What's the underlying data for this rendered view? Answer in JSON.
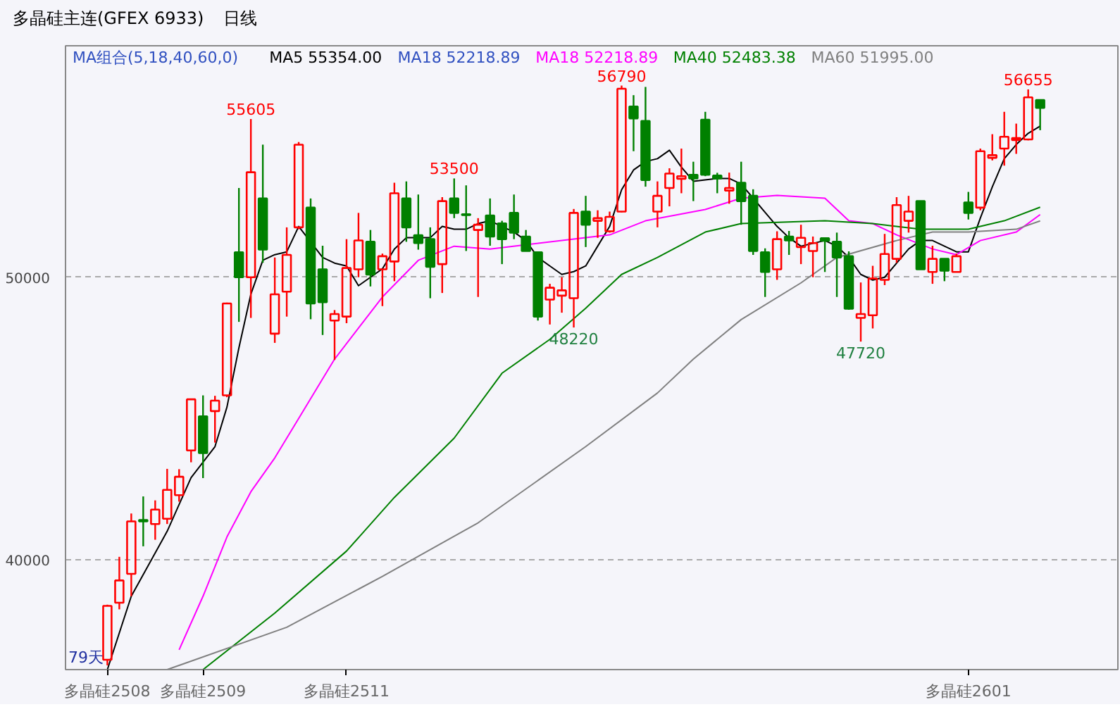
{
  "chart_data": {
    "type": "candlestick",
    "title": "多晶硅主连(GFEX 6933)",
    "subtitle": "日线",
    "legend_title": "MA组合(5,18,40,60,0)",
    "legend": "top left",
    "grid": "y",
    "categories": [
      "多晶硅2508",
      null,
      null,
      null,
      null,
      null,
      null,
      null,
      "多晶硅2509",
      null,
      null,
      null,
      null,
      null,
      null,
      null,
      null,
      null,
      null,
      null,
      "多晶硅2511",
      null,
      null,
      null,
      null,
      null,
      null,
      null,
      null,
      null,
      null,
      null,
      null,
      null,
      null,
      null,
      null,
      null,
      null,
      null,
      null,
      null,
      null,
      null,
      null,
      null,
      null,
      null,
      null,
      null,
      null,
      null,
      null,
      null,
      null,
      null,
      null,
      null,
      null,
      null,
      null,
      null,
      null,
      null,
      null,
      null,
      null,
      null,
      null,
      null,
      null,
      null,
      "多晶硅2601",
      null,
      null,
      null,
      null,
      null,
      null
    ],
    "ylim": [
      36100,
      58200
    ],
    "yticks": [
      40000,
      50000
    ],
    "ohlc": [
      [
        36451,
        38400,
        36250,
        38358
      ],
      [
        38468,
        40095,
        38235,
        39258
      ],
      [
        39491,
        41630,
        38700,
        41351
      ],
      [
        41400,
        42235,
        40468,
        41350
      ],
      [
        41258,
        42095,
        40700,
        41770
      ],
      [
        41444,
        43211,
        41258,
        42467
      ],
      [
        42281,
        43200,
        42050,
        42932
      ],
      [
        43862,
        45700,
        43444,
        45675
      ],
      [
        45071,
        45815,
        42885,
        43769
      ],
      [
        45257,
        45800,
        44141,
        45629
      ],
      [
        45815,
        49100,
        45750,
        49070
      ],
      [
        50884,
        53162,
        48419,
        50000
      ],
      [
        50000,
        55605,
        48558,
        53720
      ],
      [
        52790,
        54697,
        50512,
        50977
      ],
      [
        48000,
        50700,
        47675,
        49396
      ],
      [
        49488,
        51767,
        48605,
        50791
      ],
      [
        51767,
        54790,
        51700,
        54697
      ],
      [
        52465,
        52790,
        48512,
        49070
      ],
      [
        50279,
        51116,
        47954,
        49116
      ],
      [
        48465,
        48837,
        47070,
        48698
      ],
      [
        48605,
        51349,
        48372,
        50326
      ],
      [
        50279,
        52279,
        50000,
        51302
      ],
      [
        51256,
        51674,
        49674,
        50093
      ],
      [
        50279,
        50837,
        48977,
        50744
      ],
      [
        50558,
        53348,
        49860,
        52976
      ],
      [
        52790,
        53395,
        51256,
        51767
      ],
      [
        51488,
        52930,
        50977,
        51209
      ],
      [
        51349,
        51767,
        49256,
        50372
      ],
      [
        50465,
        52837,
        49442,
        52697
      ],
      [
        52790,
        53500,
        52093,
        52279
      ],
      [
        52230,
        53255,
        50930,
        52200
      ],
      [
        51674,
        52093,
        49302,
        51860
      ],
      [
        52186,
        52790,
        51116,
        51442
      ],
      [
        51907,
        52000,
        50465,
        51349
      ],
      [
        52279,
        52930,
        51349,
        51581
      ],
      [
        51442,
        51674,
        50930,
        50930
      ],
      [
        50884,
        50884,
        48465,
        48605
      ],
      [
        49209,
        49767,
        48326,
        49628
      ],
      [
        49349,
        50000,
        48744,
        49535
      ],
      [
        49256,
        52418,
        48220,
        52279
      ],
      [
        52325,
        52883,
        51070,
        51860
      ],
      [
        51999,
        52372,
        51395,
        52093
      ],
      [
        51628,
        52325,
        51581,
        52139
      ],
      [
        52325,
        56790,
        52300,
        56680
      ],
      [
        56046,
        56450,
        54465,
        55628
      ],
      [
        55535,
        56742,
        53209,
        53441
      ],
      [
        52325,
        53395,
        51767,
        52883
      ],
      [
        53162,
        53860,
        52511,
        53674
      ],
      [
        53488,
        54557,
        52976,
        53581
      ],
      [
        53628,
        54092,
        52697,
        53500
      ],
      [
        55581,
        55860,
        53581,
        53628
      ],
      [
        53600,
        53700,
        52976,
        53500
      ],
      [
        53070,
        53706,
        52604,
        53160
      ],
      [
        53348,
        54092,
        51860,
        52697
      ],
      [
        52883,
        53116,
        50791,
        50930
      ],
      [
        50884,
        51023,
        49302,
        50186
      ],
      [
        50279,
        51628,
        49907,
        51349
      ],
      [
        51442,
        51640,
        50791,
        51302
      ],
      [
        51070,
        51860,
        50465,
        51395
      ],
      [
        50930,
        51442,
        50000,
        51209
      ],
      [
        51380,
        51400,
        50186,
        51290
      ],
      [
        51256,
        51581,
        49302,
        50698
      ],
      [
        50744,
        50916,
        48850,
        48884
      ],
      [
        48558,
        49814,
        47720,
        48698
      ],
      [
        48651,
        50405,
        48186,
        49953
      ],
      [
        49907,
        51535,
        49721,
        50823
      ],
      [
        50651,
        52837,
        50512,
        52558
      ],
      [
        51999,
        52883,
        51581,
        52325
      ],
      [
        52697,
        52700,
        50279,
        50279
      ],
      [
        50186,
        51116,
        49767,
        50651
      ],
      [
        50651,
        50651,
        49860,
        50233
      ],
      [
        50186,
        50837,
        50186,
        50744
      ],
      [
        52651,
        53023,
        52046,
        52279
      ],
      [
        52465,
        54557,
        52372,
        54465
      ],
      [
        54232,
        55068,
        54139,
        54325
      ],
      [
        54557,
        55860,
        53953,
        54976
      ],
      [
        54860,
        55442,
        54371,
        54930
      ],
      [
        54883,
        56655,
        54850,
        56372
      ],
      [
        56279,
        56300,
        55209,
        56000
      ]
    ],
    "colors": [
      "#ff0000",
      "#ff0000",
      "#ff0000",
      "#008000",
      "#ff0000",
      "#ff0000",
      "#ff0000",
      "#ff0000",
      "#008000",
      "#ff0000",
      "#ff0000",
      "#008000",
      "#ff0000",
      "#008000",
      "#ff0000",
      "#ff0000",
      "#ff0000",
      "#008000",
      "#008000",
      "#ff0000",
      "#ff0000",
      "#ff0000",
      "#008000",
      "#ff0000",
      "#ff0000",
      "#008000",
      "#008000",
      "#008000",
      "#ff0000",
      "#008000",
      "#008000",
      "#ff0000",
      "#008000",
      "#008000",
      "#008000",
      "#008000",
      "#008000",
      "#ff0000",
      "#ff0000",
      "#ff0000",
      "#008000",
      "#ff0000",
      "#ff0000",
      "#ff0000",
      "#008000",
      "#008000",
      "#ff0000",
      "#ff0000",
      "#ff0000",
      "#008000",
      "#008000",
      "#008000",
      "#ff0000",
      "#008000",
      "#008000",
      "#008000",
      "#ff0000",
      "#008000",
      "#ff0000",
      "#ff0000",
      "#008000",
      "#008000",
      "#008000",
      "#ff0000",
      "#ff0000",
      "#ff0000",
      "#ff0000",
      "#ff0000",
      "#008000",
      "#ff0000",
      "#008000",
      "#ff0000",
      "#008000",
      "#ff0000",
      "#ff0000",
      "#ff0000",
      "#ff0000",
      "#ff0000",
      "#008000"
    ],
    "series": [
      {
        "type": "line",
        "name": "MA5 55354.00",
        "color": "#000000",
        "values": [
          36100,
          null,
          38700,
          null,
          null,
          41000,
          null,
          42900,
          null,
          44000,
          45400,
          47500,
          49400,
          50600,
          50800,
          50900,
          51800,
          null,
          50700,
          50500,
          50400,
          49700,
          50000,
          50300,
          51000,
          51400,
          null,
          51400,
          51800,
          51700,
          51700,
          51900,
          52000,
          51800,
          51600,
          51300,
          50700,
          50400,
          50100,
          50200,
          50400,
          51100,
          51800,
          53100,
          53800,
          54100,
          54200,
          54500,
          53900,
          53400,
          null,
          53500,
          53500,
          53300,
          52800,
          52300,
          51800,
          51400,
          51100,
          51200,
          51300,
          51100,
          50700,
          50100,
          49900,
          50000,
          50500,
          51000,
          51300,
          51300,
          51100,
          50900,
          50900,
          52100,
          53200,
          54200,
          54700,
          55100,
          55354
        ]
      },
      {
        "type": "line",
        "name": "MA18 52218.89",
        "color": "#ff00ff",
        "values": [
          null,
          null,
          null,
          null,
          null,
          null,
          36800,
          null,
          38700,
          null,
          40800,
          null,
          42400,
          null,
          43600,
          null,
          45000,
          null,
          46400,
          47100,
          null,
          48200,
          null,
          49300,
          null,
          null,
          50600,
          null,
          null,
          51100,
          null,
          null,
          51000,
          null,
          null,
          null,
          null,
          null,
          null,
          null,
          51400,
          null,
          51500,
          null,
          null,
          52000,
          null,
          null,
          null,
          null,
          52400,
          null,
          null,
          52800,
          null,
          null,
          52900,
          null,
          null,
          null,
          52800,
          null,
          52000,
          null,
          51900,
          null,
          51500,
          null,
          null,
          51000,
          null,
          50800,
          null,
          51300,
          null,
          null,
          51600,
          null,
          52219
        ]
      },
      {
        "type": "line",
        "name": "MA40 52483.38",
        "color": "#008000",
        "values": [
          null,
          null,
          null,
          null,
          null,
          null,
          null,
          null,
          36100,
          null,
          null,
          null,
          null,
          null,
          38100,
          null,
          null,
          null,
          null,
          null,
          40300,
          null,
          null,
          null,
          42200,
          null,
          null,
          null,
          null,
          44300,
          null,
          null,
          null,
          46600,
          null,
          null,
          null,
          47800,
          null,
          null,
          48900,
          null,
          null,
          50100,
          null,
          null,
          50700,
          null,
          null,
          null,
          51600,
          null,
          null,
          51900,
          null,
          null,
          null,
          null,
          null,
          null,
          52000,
          null,
          null,
          null,
          51900,
          null,
          null,
          null,
          51700,
          null,
          null,
          null,
          51700,
          null,
          null,
          52000,
          null,
          null,
          52483
        ]
      },
      {
        "type": "line",
        "name": "MA60 51995.00",
        "color": "#808080",
        "values": [
          null,
          null,
          null,
          null,
          null,
          36100,
          null,
          null,
          null,
          null,
          null,
          null,
          null,
          null,
          null,
          37600,
          null,
          null,
          null,
          null,
          null,
          null,
          null,
          39400,
          null,
          null,
          null,
          null,
          null,
          null,
          null,
          41300,
          null,
          null,
          null,
          null,
          null,
          null,
          null,
          null,
          44000,
          null,
          null,
          null,
          null,
          null,
          45900,
          null,
          null,
          47100,
          null,
          null,
          null,
          48500,
          null,
          null,
          null,
          null,
          49800,
          null,
          null,
          50700,
          null,
          null,
          null,
          null,
          51300,
          null,
          null,
          51600,
          null,
          null,
          51600,
          null,
          null,
          null,
          51700,
          null,
          51995
        ]
      }
    ],
    "annotations": [
      "79天",
      "MA18 52218.89",
      {
        "text": "55605",
        "y": 55605
      },
      {
        "text": "53500",
        "y": 53500
      },
      {
        "text": "56790",
        "y": 56790
      },
      {
        "text": "48220",
        "y": 48220
      },
      {
        "text": "47720",
        "y": 47720
      },
      {
        "text": "56655",
        "y": 56655
      }
    ]
  }
}
